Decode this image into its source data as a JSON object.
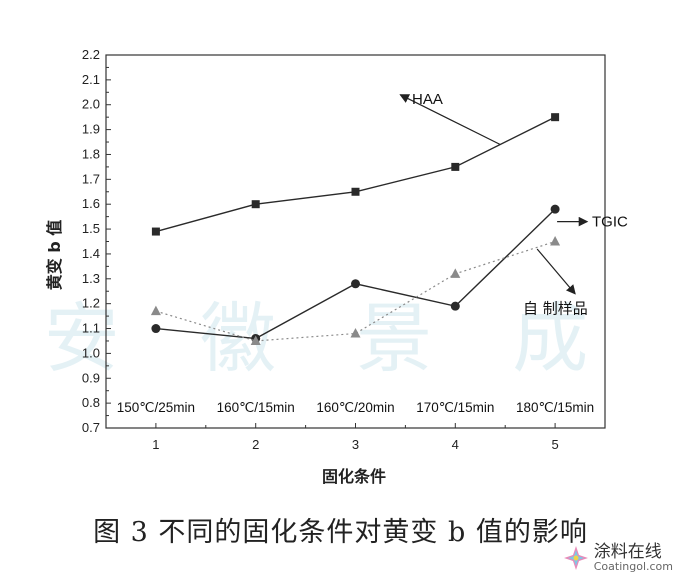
{
  "chart_data": {
    "type": "line",
    "x": [
      1,
      2,
      3,
      4,
      5
    ],
    "xticks": [
      "1",
      "2",
      "3",
      "4",
      "5"
    ],
    "xlabel": "固化条件",
    "ylabel": "黄变 b 值",
    "ylim": [
      0.7,
      2.2
    ],
    "yticks": [
      "0.7",
      "0.8",
      "0.9",
      "1.0",
      "1.1",
      "1.2",
      "1.3",
      "1.4",
      "1.5",
      "1.6",
      "1.7",
      "1.8",
      "1.9",
      "2.0",
      "2.1",
      "2.2"
    ],
    "condition_labels": [
      "150℃/25min",
      "160℃/15min",
      "160℃/20min",
      "170℃/15min",
      "180℃/15min"
    ],
    "grid": false,
    "series": [
      {
        "name": "HAA",
        "values": [
          1.49,
          1.6,
          1.65,
          1.75,
          1.95
        ],
        "marker": "square",
        "line": "solid",
        "color": "#2a2a2a"
      },
      {
        "name": "TGIC",
        "values": [
          1.1,
          1.06,
          1.28,
          1.19,
          1.58
        ],
        "marker": "circle",
        "line": "solid",
        "color": "#2a2a2a"
      },
      {
        "name": "自 制样品",
        "values": [
          1.17,
          1.05,
          1.08,
          1.32,
          1.45
        ],
        "marker": "triangle",
        "line": "dotted",
        "color": "#8a8a8a"
      }
    ],
    "annotations": [
      "HAA",
      "TGIC",
      "自 制样品"
    ]
  },
  "caption": "图 3 不同的固化条件对黄变 b 值的影响",
  "watermark": {
    "cn": "涂料在线",
    "en": "Coatingol.com",
    "faint": "安 徽 景 成"
  }
}
